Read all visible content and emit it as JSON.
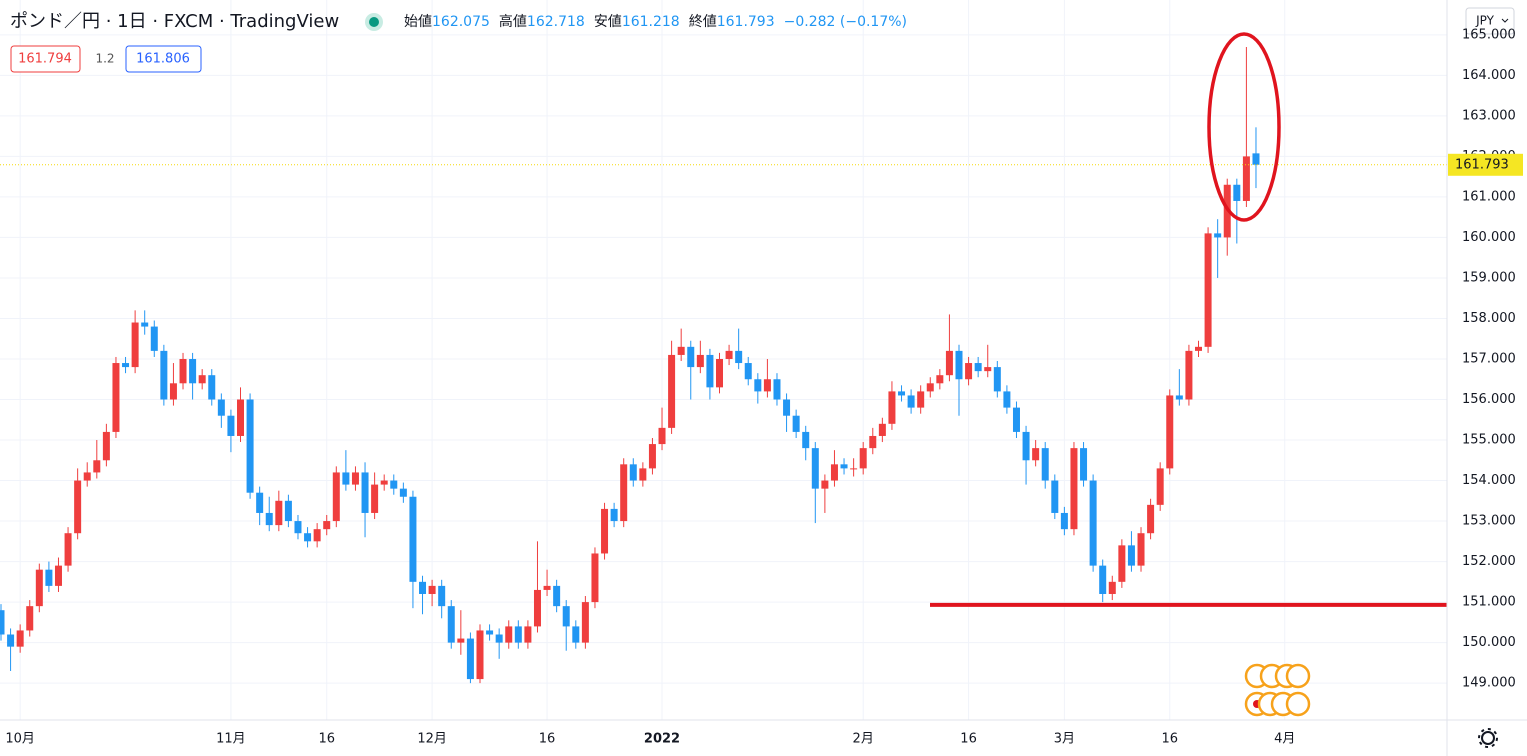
{
  "chart_data": {
    "type": "candlestick",
    "title": "ポンド／円 · 1日 · FXCM · TradingView",
    "ohlc_labels": {
      "open": "始値",
      "high": "高値",
      "low": "安値",
      "close": "終値"
    },
    "change": "−0.282 (−0.17%)",
    "bid": "161.794",
    "spread": "1.2",
    "ask": "161.806",
    "currency": "JPY",
    "up_color": "#ef3e3e",
    "down_color": "#2196f3",
    "open": [
      150.8,
      150.2,
      149.9,
      150.3,
      150.9,
      151.8,
      151.4,
      151.9,
      152.7,
      154.0,
      154.2,
      154.5,
      155.2,
      156.9,
      156.8,
      157.9,
      157.8,
      157.2,
      156.0,
      156.4,
      157.0,
      156.4,
      156.6,
      156.0,
      155.6,
      155.1,
      156.0,
      153.7,
      153.2,
      152.9,
      153.5,
      153.0,
      152.7,
      152.5,
      152.8,
      153.0,
      154.2,
      153.9,
      154.2,
      153.2,
      153.9,
      154.0,
      153.8,
      153.6,
      151.5,
      151.2,
      151.4,
      150.9,
      150.0,
      150.1,
      149.1,
      150.3,
      150.2,
      150.0,
      150.4,
      150.0,
      150.4,
      151.3,
      151.4,
      150.9,
      150.4,
      150.0,
      151.0,
      152.2,
      153.3,
      153.0,
      154.4,
      154.0,
      154.3,
      154.9,
      155.3,
      157.1,
      157.3,
      156.8,
      157.1,
      156.3,
      157.0,
      157.2,
      156.9,
      156.5,
      156.2,
      156.5,
      156.0,
      155.6,
      155.2,
      154.8,
      153.8,
      154.0,
      154.4,
      154.3,
      154.3,
      154.8,
      155.1,
      155.4,
      156.2,
      156.1,
      155.8,
      156.2,
      156.4,
      156.6,
      157.2,
      156.5,
      156.9,
      156.7,
      156.8,
      156.2,
      155.8,
      155.2,
      154.5,
      154.8,
      154.0,
      153.2,
      152.8,
      154.8,
      154.0,
      151.9,
      151.2,
      151.5,
      152.4,
      151.9,
      152.7,
      153.4,
      154.3,
      156.1,
      156.0,
      157.2,
      157.3,
      160.1,
      160.0,
      161.3,
      160.9,
      162.075
    ],
    "high": [
      150.95,
      150.35,
      150.45,
      151.05,
      151.95,
      152.0,
      152.1,
      152.85,
      154.3,
      154.45,
      155.0,
      155.4,
      157.05,
      157.05,
      158.2,
      158.2,
      157.95,
      157.35,
      156.9,
      157.15,
      157.15,
      156.75,
      156.75,
      156.15,
      155.75,
      156.3,
      156.15,
      153.85,
      153.6,
      153.75,
      153.65,
      153.15,
      152.85,
      152.95,
      153.15,
      154.35,
      154.75,
      154.35,
      154.45,
      154.2,
      154.15,
      154.15,
      153.95,
      153.75,
      151.65,
      151.55,
      151.55,
      151.05,
      150.8,
      150.25,
      150.45,
      150.45,
      150.35,
      150.55,
      150.55,
      150.55,
      152.5,
      151.8,
      151.55,
      151.05,
      150.55,
      151.15,
      152.35,
      153.45,
      153.45,
      154.55,
      154.55,
      154.45,
      155.05,
      155.8,
      157.45,
      157.75,
      157.45,
      157.45,
      157.25,
      157.15,
      157.35,
      157.75,
      157.05,
      156.65,
      157.0,
      156.65,
      156.15,
      155.75,
      155.35,
      154.95,
      154.15,
      154.75,
      154.55,
      154.55,
      154.95,
      155.3,
      155.55,
      156.45,
      156.35,
      156.25,
      156.35,
      156.55,
      156.75,
      158.1,
      157.35,
      157.05,
      157.05,
      157.35,
      156.95,
      156.35,
      155.95,
      155.35,
      155.0,
      154.95,
      154.15,
      153.35,
      154.95,
      154.95,
      154.15,
      152.05,
      151.65,
      152.55,
      152.75,
      152.85,
      153.55,
      154.45,
      156.25,
      156.75,
      157.35,
      157.45,
      160.25,
      160.45,
      161.45,
      161.45,
      164.7,
      162.718
    ],
    "low": [
      150.05,
      149.3,
      149.75,
      150.15,
      150.75,
      151.25,
      151.25,
      151.75,
      152.55,
      153.85,
      154.05,
      154.35,
      155.05,
      156.65,
      156.65,
      157.6,
      157.05,
      155.85,
      155.85,
      156.25,
      156.0,
      156.25,
      155.85,
      155.3,
      154.7,
      154.95,
      153.55,
      152.9,
      152.75,
      152.75,
      152.85,
      152.55,
      152.35,
      152.35,
      152.65,
      152.85,
      153.75,
      153.75,
      152.6,
      153.05,
      153.75,
      153.65,
      153.45,
      150.85,
      150.7,
      150.9,
      150.6,
      149.85,
      149.7,
      149.0,
      149.0,
      150.05,
      149.6,
      149.85,
      149.85,
      149.85,
      150.25,
      151.15,
      150.75,
      149.8,
      149.85,
      149.85,
      150.85,
      152.05,
      152.85,
      152.85,
      153.85,
      153.85,
      154.15,
      154.75,
      155.15,
      156.95,
      156.0,
      156.65,
      156.0,
      156.15,
      156.85,
      156.75,
      156.35,
      155.9,
      156.05,
      155.85,
      155.2,
      155.05,
      154.5,
      152.95,
      153.2,
      153.85,
      154.15,
      154.1,
      154.15,
      154.65,
      154.95,
      155.25,
      155.95,
      155.65,
      155.65,
      156.05,
      156.25,
      156.45,
      155.6,
      156.35,
      156.55,
      156.55,
      156.05,
      155.65,
      155.05,
      153.9,
      154.35,
      153.8,
      153.05,
      152.65,
      152.65,
      153.85,
      151.75,
      151.0,
      151.05,
      151.35,
      151.75,
      151.75,
      152.55,
      153.25,
      154.15,
      155.85,
      155.85,
      157.05,
      157.15,
      159.0,
      159.55,
      159.85,
      160.75,
      161.218
    ],
    "close": [
      150.2,
      149.9,
      150.3,
      150.9,
      151.8,
      151.4,
      151.9,
      152.7,
      154.0,
      154.2,
      154.5,
      155.2,
      156.9,
      156.8,
      157.9,
      157.8,
      157.2,
      156.0,
      156.4,
      157.0,
      156.4,
      156.6,
      156.0,
      155.6,
      155.1,
      156.0,
      153.7,
      153.2,
      152.9,
      153.5,
      153.0,
      152.7,
      152.5,
      152.8,
      153.0,
      154.2,
      153.9,
      154.2,
      153.2,
      153.9,
      154.0,
      153.8,
      153.6,
      151.5,
      151.2,
      151.4,
      150.9,
      150.0,
      150.1,
      149.1,
      150.3,
      150.2,
      150.0,
      150.4,
      150.0,
      150.4,
      151.3,
      151.4,
      150.9,
      150.4,
      150.0,
      151.0,
      152.2,
      153.3,
      153.0,
      154.4,
      154.0,
      154.3,
      154.9,
      155.3,
      157.1,
      157.3,
      156.8,
      157.1,
      156.3,
      157.0,
      157.2,
      156.9,
      156.5,
      156.2,
      156.5,
      156.0,
      155.6,
      155.2,
      154.8,
      153.8,
      154.0,
      154.4,
      154.3,
      154.3,
      154.8,
      155.1,
      155.4,
      156.2,
      156.1,
      155.8,
      156.2,
      156.4,
      156.6,
      157.2,
      156.5,
      156.9,
      156.7,
      156.8,
      156.2,
      155.8,
      155.2,
      154.5,
      154.8,
      154.0,
      153.2,
      152.8,
      154.8,
      154.0,
      151.9,
      151.2,
      151.5,
      152.4,
      151.9,
      152.7,
      153.4,
      154.3,
      156.1,
      156.0,
      157.2,
      157.3,
      160.1,
      160.0,
      161.3,
      160.9,
      162.0,
      161.793
    ],
    "ylim": [
      148.09,
      165.86
    ],
    "yticks": [
      {
        "value": 149,
        "label": "149.000"
      },
      {
        "value": 150,
        "label": "150.000"
      },
      {
        "value": 151,
        "label": "151.000"
      },
      {
        "value": 152,
        "label": "152.000"
      },
      {
        "value": 153,
        "label": "153.000"
      },
      {
        "value": 154,
        "label": "154.000"
      },
      {
        "value": 155,
        "label": "155.000"
      },
      {
        "value": 156,
        "label": "156.000"
      },
      {
        "value": 157,
        "label": "157.000"
      },
      {
        "value": 158,
        "label": "158.000"
      },
      {
        "value": 159,
        "label": "159.000"
      },
      {
        "value": 160,
        "label": "160.000"
      },
      {
        "value": 161,
        "label": "161.000"
      },
      {
        "value": 162,
        "label": "162.000"
      },
      {
        "value": 163,
        "label": "163.000"
      },
      {
        "value": 164,
        "label": "164.000"
      },
      {
        "value": 165,
        "label": "165.000"
      }
    ],
    "xticks": [
      {
        "value": 2,
        "label": "10月"
      },
      {
        "value": 24,
        "label": "11月"
      },
      {
        "value": 34,
        "label": "16"
      },
      {
        "value": 45,
        "label": "12月"
      },
      {
        "value": 57,
        "label": "16"
      },
      {
        "value": 69,
        "label": "2022"
      },
      {
        "value": 90,
        "label": "2月"
      },
      {
        "value": 101,
        "label": "16"
      },
      {
        "value": 111,
        "label": "3月"
      },
      {
        "value": 122,
        "label": "16"
      },
      {
        "value": 134,
        "label": "4月"
      }
    ],
    "grid": true,
    "annotation_line": 150.93
  }
}
